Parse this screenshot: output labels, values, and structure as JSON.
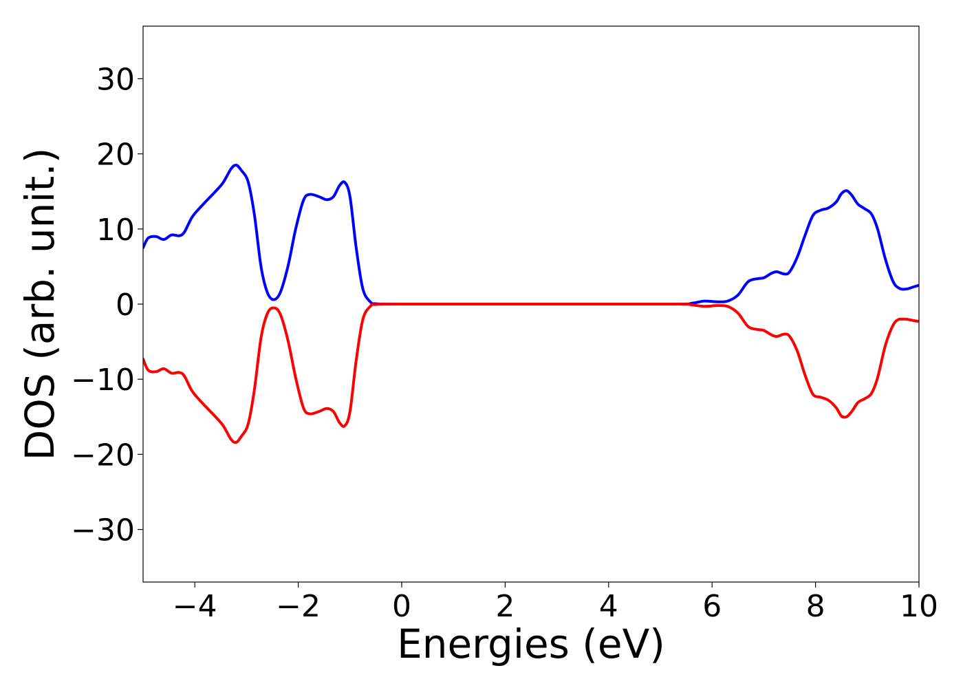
{
  "chart_data": {
    "type": "line",
    "title": "",
    "xlabel": "Energies (eV)",
    "ylabel": "DOS (arb. unit.)",
    "xlim": [
      -5,
      10
    ],
    "ylim": [
      -37,
      37
    ],
    "x_ticks": [
      -4,
      -2,
      0,
      2,
      4,
      6,
      8,
      10
    ],
    "y_ticks": [
      -30,
      -20,
      -10,
      0,
      10,
      20,
      30
    ],
    "x_tick_labels": [
      "−4",
      "−2",
      "0",
      "2",
      "4",
      "6",
      "8",
      "10"
    ],
    "y_tick_labels": [
      "−30",
      "−20",
      "−10",
      "0",
      "10",
      "20",
      "30"
    ],
    "grid": false,
    "legend": "none",
    "series": [
      {
        "color": "#0000ff",
        "points": [
          [
            -5.0,
            7.5
          ],
          [
            -4.9,
            8.8
          ],
          [
            -4.75,
            9.0
          ],
          [
            -4.6,
            8.6
          ],
          [
            -4.45,
            9.2
          ],
          [
            -4.3,
            9.1
          ],
          [
            -4.2,
            9.6
          ],
          [
            -4.05,
            11.6
          ],
          [
            -3.85,
            13.2
          ],
          [
            -3.6,
            15.0
          ],
          [
            -3.45,
            16.2
          ],
          [
            -3.3,
            18.0
          ],
          [
            -3.2,
            18.5
          ],
          [
            -3.1,
            17.8
          ],
          [
            -2.97,
            16.3
          ],
          [
            -2.85,
            12.0
          ],
          [
            -2.72,
            5.0
          ],
          [
            -2.6,
            1.6
          ],
          [
            -2.48,
            0.6
          ],
          [
            -2.35,
            1.5
          ],
          [
            -2.2,
            5.0
          ],
          [
            -2.05,
            10.0
          ],
          [
            -1.9,
            13.8
          ],
          [
            -1.78,
            14.6
          ],
          [
            -1.6,
            14.3
          ],
          [
            -1.45,
            13.9
          ],
          [
            -1.32,
            14.3
          ],
          [
            -1.2,
            15.8
          ],
          [
            -1.1,
            16.2
          ],
          [
            -1.0,
            14.3
          ],
          [
            -0.88,
            7.5
          ],
          [
            -0.75,
            2.0
          ],
          [
            -0.6,
            0.25
          ],
          [
            -0.5,
            0.05
          ],
          [
            0.0,
            0.0
          ],
          [
            3.0,
            0.0
          ],
          [
            5.3,
            0.0
          ],
          [
            5.6,
            0.1
          ],
          [
            5.85,
            0.4
          ],
          [
            6.1,
            0.3
          ],
          [
            6.3,
            0.4
          ],
          [
            6.5,
            1.2
          ],
          [
            6.7,
            3.0
          ],
          [
            6.9,
            3.4
          ],
          [
            7.0,
            3.5
          ],
          [
            7.15,
            4.1
          ],
          [
            7.25,
            4.3
          ],
          [
            7.4,
            4.0
          ],
          [
            7.5,
            4.3
          ],
          [
            7.65,
            6.3
          ],
          [
            7.8,
            9.2
          ],
          [
            7.95,
            11.8
          ],
          [
            8.1,
            12.5
          ],
          [
            8.25,
            12.8
          ],
          [
            8.4,
            13.6
          ],
          [
            8.5,
            14.7
          ],
          [
            8.6,
            15.1
          ],
          [
            8.7,
            14.5
          ],
          [
            8.82,
            13.3
          ],
          [
            8.95,
            12.7
          ],
          [
            9.08,
            12.0
          ],
          [
            9.2,
            10.0
          ],
          [
            9.35,
            6.0
          ],
          [
            9.5,
            3.0
          ],
          [
            9.62,
            2.1
          ],
          [
            9.75,
            2.0
          ],
          [
            9.9,
            2.3
          ],
          [
            10.0,
            2.5
          ]
        ]
      },
      {
        "color": "#ff0000",
        "points": [
          [
            -5.0,
            -7.3
          ],
          [
            -4.9,
            -8.8
          ],
          [
            -4.75,
            -9.0
          ],
          [
            -4.6,
            -8.6
          ],
          [
            -4.45,
            -9.2
          ],
          [
            -4.3,
            -9.1
          ],
          [
            -4.2,
            -9.6
          ],
          [
            -4.05,
            -11.6
          ],
          [
            -3.85,
            -13.2
          ],
          [
            -3.6,
            -15.0
          ],
          [
            -3.45,
            -16.2
          ],
          [
            -3.3,
            -18.0
          ],
          [
            -3.2,
            -18.4
          ],
          [
            -3.1,
            -17.6
          ],
          [
            -2.97,
            -16.0
          ],
          [
            -2.85,
            -11.5
          ],
          [
            -2.72,
            -4.5
          ],
          [
            -2.6,
            -1.3
          ],
          [
            -2.48,
            -0.5
          ],
          [
            -2.35,
            -1.3
          ],
          [
            -2.2,
            -4.8
          ],
          [
            -2.05,
            -9.8
          ],
          [
            -1.9,
            -13.8
          ],
          [
            -1.78,
            -14.6
          ],
          [
            -1.6,
            -14.3
          ],
          [
            -1.45,
            -13.9
          ],
          [
            -1.32,
            -14.3
          ],
          [
            -1.2,
            -15.8
          ],
          [
            -1.1,
            -16.2
          ],
          [
            -1.0,
            -14.3
          ],
          [
            -0.88,
            -7.5
          ],
          [
            -0.75,
            -2.0
          ],
          [
            -0.6,
            -0.25
          ],
          [
            -0.5,
            -0.05
          ],
          [
            0.0,
            0.0
          ],
          [
            3.0,
            0.0
          ],
          [
            5.3,
            0.0
          ],
          [
            5.6,
            -0.1
          ],
          [
            5.85,
            -0.3
          ],
          [
            6.1,
            -0.2
          ],
          [
            6.3,
            -0.3
          ],
          [
            6.5,
            -1.2
          ],
          [
            6.7,
            -3.0
          ],
          [
            6.9,
            -3.4
          ],
          [
            7.0,
            -3.5
          ],
          [
            7.15,
            -4.1
          ],
          [
            7.25,
            -4.3
          ],
          [
            7.4,
            -4.0
          ],
          [
            7.5,
            -4.3
          ],
          [
            7.65,
            -6.3
          ],
          [
            7.8,
            -9.5
          ],
          [
            7.95,
            -12.0
          ],
          [
            8.1,
            -12.4
          ],
          [
            8.25,
            -12.8
          ],
          [
            8.4,
            -13.8
          ],
          [
            8.5,
            -14.9
          ],
          [
            8.6,
            -15.0
          ],
          [
            8.7,
            -14.3
          ],
          [
            8.82,
            -13.1
          ],
          [
            8.95,
            -12.6
          ],
          [
            9.08,
            -11.9
          ],
          [
            9.2,
            -9.8
          ],
          [
            9.35,
            -5.5
          ],
          [
            9.5,
            -2.8
          ],
          [
            9.62,
            -2.0
          ],
          [
            9.75,
            -2.0
          ],
          [
            9.9,
            -2.2
          ],
          [
            10.0,
            -2.3
          ]
        ]
      }
    ]
  }
}
